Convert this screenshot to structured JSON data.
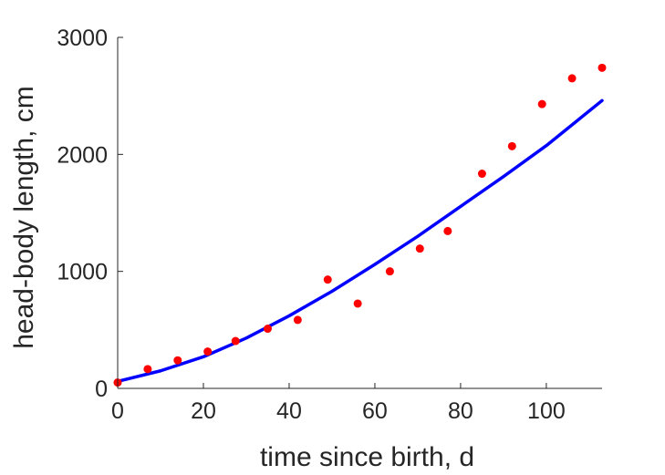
{
  "chart_data": {
    "type": "scatter",
    "xlabel": "time since birth, d",
    "ylabel": "head-body length, cm",
    "xlim": [
      0,
      113
    ],
    "ylim": [
      0,
      3000
    ],
    "x_ticks": [
      0,
      20,
      40,
      60,
      80,
      100
    ],
    "y_ticks": [
      0,
      1000,
      2000,
      3000
    ],
    "x_tick_labels": [
      "0",
      "20",
      "40",
      "60",
      "80",
      "100"
    ],
    "y_tick_labels": [
      "0",
      "1000",
      "2000",
      "3000"
    ],
    "grid": false,
    "series": [
      {
        "type": "scatter",
        "color": "#ff0000",
        "points": [
          [
            0,
            50
          ],
          [
            7,
            165
          ],
          [
            14,
            240
          ],
          [
            21,
            315
          ],
          [
            27.5,
            405
          ],
          [
            35,
            510
          ],
          [
            42,
            585
          ],
          [
            49,
            930
          ],
          [
            56,
            725
          ],
          [
            63.5,
            1000
          ],
          [
            70.5,
            1195
          ],
          [
            77,
            1345
          ],
          [
            85,
            1835
          ],
          [
            92,
            2070
          ],
          [
            99,
            2430
          ],
          [
            106,
            2650
          ],
          [
            113,
            2740
          ]
        ]
      },
      {
        "type": "line",
        "color": "#0000ff",
        "points": [
          [
            0,
            60
          ],
          [
            10,
            150
          ],
          [
            20,
            270
          ],
          [
            30,
            430
          ],
          [
            40,
            620
          ],
          [
            50,
            830
          ],
          [
            60,
            1060
          ],
          [
            70,
            1300
          ],
          [
            80,
            1555
          ],
          [
            90,
            1810
          ],
          [
            100,
            2075
          ],
          [
            113,
            2460
          ]
        ]
      }
    ]
  }
}
